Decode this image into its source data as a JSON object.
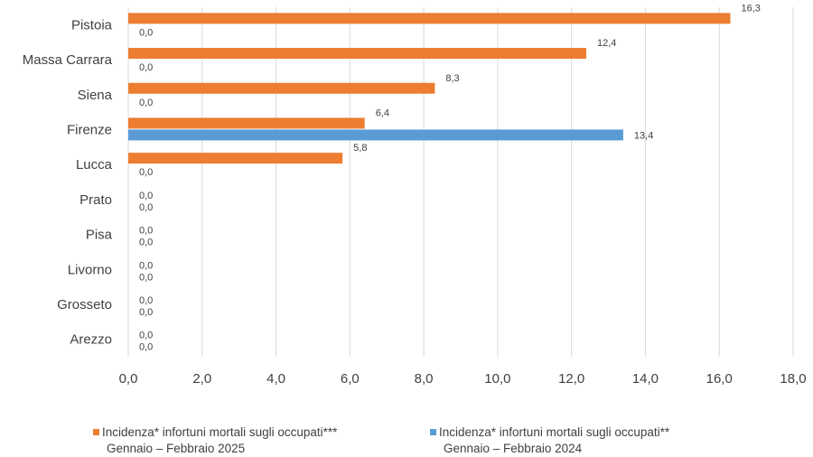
{
  "chart_data": {
    "type": "bar",
    "orientation": "horizontal",
    "categories": [
      "Pistoia",
      "Massa Carrara",
      "Siena",
      "Firenze",
      "Lucca",
      "Prato",
      "Pisa",
      "Livorno",
      "Grosseto",
      "Arezzo"
    ],
    "series": [
      {
        "name_line1": "Incidenza* infortuni mortali  sugli occupati***",
        "name_line2": "Gennaio – Febbraio 2025",
        "color": "#ED7D31",
        "values": [
          16.3,
          12.4,
          8.3,
          6.4,
          5.8,
          0.0,
          0.0,
          0.0,
          0.0,
          0.0
        ],
        "labels": [
          "16,3",
          "12,4",
          "8,3",
          "6,4",
          "5,8",
          "0,0",
          "0,0",
          "0,0",
          "0,0",
          "0,0"
        ]
      },
      {
        "name_line1": "Incidenza* infortuni mortali  sugli occupati**",
        "name_line2": "Gennaio – Febbraio 2024",
        "color": "#5B9BD5",
        "values": [
          0.0,
          0.0,
          0.0,
          13.4,
          0.0,
          0.0,
          0.0,
          0.0,
          0.0,
          0.0
        ],
        "labels": [
          "0,0",
          "0,0",
          "0,0",
          "13,4",
          "0,0",
          "0,0",
          "0,0",
          "0,0",
          "0,0",
          "0,0"
        ]
      }
    ],
    "xlim": [
      0,
      18
    ],
    "x_ticks": [
      0,
      2,
      4,
      6,
      8,
      10,
      12,
      14,
      16,
      18
    ],
    "x_tick_labels": [
      "0,0",
      "2,0",
      "4,0",
      "6,0",
      "8,0",
      "10,0",
      "12,0",
      "14,0",
      "16,0",
      "18,0"
    ],
    "grid": "vertical",
    "legend_position": "bottom"
  }
}
